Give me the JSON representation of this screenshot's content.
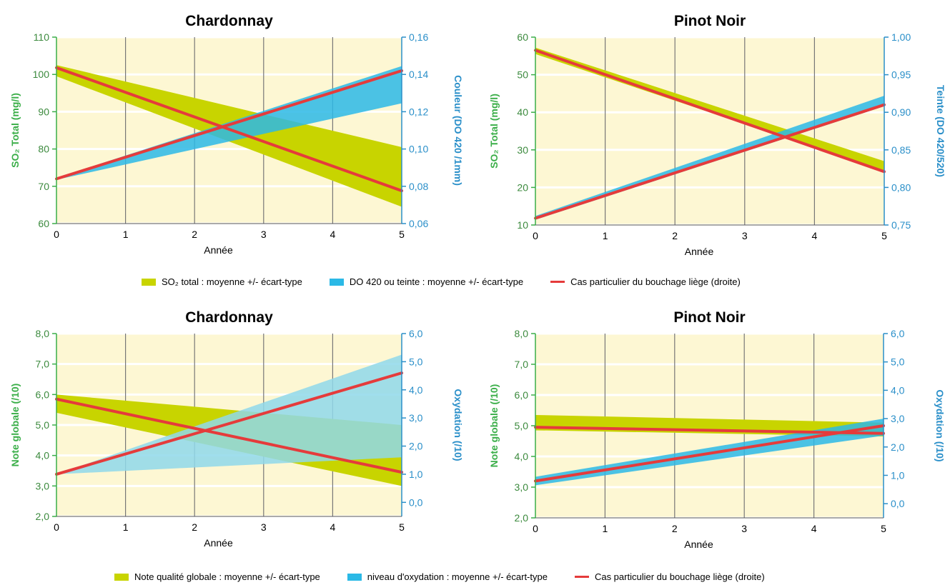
{
  "colors": {
    "plot_bg": "#fdf7d3",
    "grid_h": "#ffffff",
    "grid_v": "#777777",
    "so2_band": "#c8d400",
    "color_band": "#2bb9e6",
    "color_band_light": "#8fd8ea",
    "overlap": "#6dc07a",
    "red_line": "#e53b3b",
    "left_axis": "#3aae48",
    "right_axis": "#2a8fc9"
  },
  "legends": [
    {
      "items": [
        {
          "label": "SO₂ total : moyenne +/- écart-type",
          "color": "#c8d400",
          "kind": "band"
        },
        {
          "label": "DO 420 ou teinte : moyenne +/- écart-type",
          "color": "#2bb9e6",
          "kind": "band"
        },
        {
          "label": "Cas particulier du bouchage liège (droite)",
          "color": "#e53b3b",
          "kind": "line"
        }
      ]
    },
    {
      "items": [
        {
          "label": "Note qualité globale :  moyenne +/- écart-type",
          "color": "#c8d400",
          "kind": "band"
        },
        {
          "label": "niveau d'oxydation :  moyenne +/- écart-type",
          "color": "#2bb9e6",
          "kind": "band"
        },
        {
          "label": "Cas particulier du bouchage liège (droite)",
          "color": "#e53b3b",
          "kind": "line"
        }
      ]
    }
  ],
  "chart_data": [
    {
      "type": "area",
      "title": "Chardonnay",
      "xlabel": "Année",
      "x": [
        0,
        5
      ],
      "xticks": [
        "0",
        "1",
        "2",
        "3",
        "4",
        "5"
      ],
      "ylabel_left": "SO₂ Total (mg/l)",
      "ylabel_right": "Couleur (DO 420 /1mm)",
      "ylim_left": [
        60,
        110
      ],
      "yticks_left": [
        "60",
        "70",
        "80",
        "90",
        "100",
        "110"
      ],
      "ylim_right": [
        0.06,
        0.16
      ],
      "yticks_right": [
        "0,06",
        "0,08",
        "0,10",
        "0,12",
        "0,14",
        "0,16"
      ],
      "series": [
        {
          "name": "SO₂ total : moyenne +/- écart-type",
          "axis": "left",
          "kind": "band",
          "upper": [
            102.5,
            80.5
          ],
          "lower": [
            99.5,
            64.5
          ]
        },
        {
          "name": "DO 420 ou teinte : moyenne +/- écart-type",
          "axis": "right",
          "kind": "band",
          "upper": [
            0.0845,
            0.1445
          ],
          "lower": [
            0.0835,
            0.1245
          ]
        },
        {
          "name": "Cas particulier du bouchage liège (droite)",
          "axis": "left",
          "kind": "line",
          "values": [
            101.8,
            68.8
          ]
        },
        {
          "name": "Cas particulier du bouchage liège (droite)",
          "axis": "right",
          "kind": "line",
          "values": [
            0.084,
            0.142
          ]
        }
      ]
    },
    {
      "type": "area",
      "title": "Pinot Noir",
      "xlabel": "Année",
      "x": [
        0,
        5
      ],
      "xticks": [
        "0",
        "1",
        "2",
        "3",
        "4",
        "5"
      ],
      "ylabel_left": "SO₂ Total (mg/l)",
      "ylabel_right": "Teinte (DO 420/520)",
      "ylim_left": [
        10,
        60
      ],
      "yticks_left": [
        "10",
        "20",
        "30",
        "40",
        "50",
        "60"
      ],
      "ylim_right": [
        0.75,
        1.0
      ],
      "yticks_right": [
        "0,75",
        "0,80",
        "0,85",
        "0,90",
        "0,95",
        "1,00"
      ],
      "series": [
        {
          "name": "SO₂ total : moyenne +/- écart-type",
          "axis": "left",
          "kind": "band",
          "upper": [
            57.2,
            27.0
          ],
          "lower": [
            55.5,
            24.5
          ]
        },
        {
          "name": "DO 420 ou teinte : moyenne +/- écart-type",
          "axis": "right",
          "kind": "band",
          "upper": [
            0.762,
            0.922
          ],
          "lower": [
            0.757,
            0.908
          ]
        },
        {
          "name": "Cas particulier du bouchage liège (droite)",
          "axis": "left",
          "kind": "line",
          "values": [
            56.5,
            24.2
          ]
        },
        {
          "name": "Cas particulier du bouchage liège (droite)",
          "axis": "right",
          "kind": "line",
          "values": [
            0.759,
            0.91
          ]
        }
      ]
    },
    {
      "type": "area",
      "title": "Chardonnay",
      "xlabel": "Année",
      "x": [
        0,
        5
      ],
      "xticks": [
        "0",
        "1",
        "2",
        "3",
        "4",
        "5"
      ],
      "ylabel_left": "Note globale (/10)",
      "ylabel_right": "Oxydation (/10)",
      "ylim_left": [
        2.0,
        8.0
      ],
      "yticks_left": [
        "2,0",
        "3,0",
        "4,0",
        "5,0",
        "6,0",
        "7,0",
        "8,0"
      ],
      "ylim_right": [
        -0.5,
        6.0
      ],
      "yticks_right": [
        "0,0",
        "1,0",
        "2,0",
        "3,0",
        "4,0",
        "5,0",
        "6,0"
      ],
      "series": [
        {
          "name": "Note qualité globale :  moyenne +/- écart-type",
          "axis": "left",
          "kind": "band",
          "upper": [
            6.0,
            5.0
          ],
          "lower": [
            5.4,
            3.0
          ]
        },
        {
          "name": "niveau d'oxydation :  moyenne +/- écart-type",
          "axis": "right",
          "kind": "band",
          "upper": [
            1.0,
            5.25
          ],
          "lower": [
            1.0,
            1.6
          ]
        },
        {
          "name": "Cas particulier du bouchage liège (droite)",
          "axis": "left",
          "kind": "line",
          "values": [
            5.85,
            3.45
          ]
        },
        {
          "name": "Cas particulier du bouchage liège (droite)",
          "axis": "right",
          "kind": "line",
          "values": [
            1.0,
            4.6
          ]
        }
      ]
    },
    {
      "type": "area",
      "title": "Pinot Noir",
      "xlabel": "Année",
      "x": [
        0,
        5
      ],
      "xticks": [
        "0",
        "1",
        "2",
        "3",
        "4",
        "5"
      ],
      "ylabel_left": "Note globale (/10)",
      "ylabel_right": "Oxydation (/10)",
      "ylim_left": [
        2.0,
        8.0
      ],
      "yticks_left": [
        "2,0",
        "3,0",
        "4,0",
        "5,0",
        "6,0",
        "7,0",
        "8,0"
      ],
      "ylim_right": [
        -0.5,
        6.0
      ],
      "yticks_right": [
        "0,0",
        "1,0",
        "2,0",
        "3,0",
        "4,0",
        "5,0",
        "6,0"
      ],
      "series": [
        {
          "name": "Note qualité globale :  moyenne +/- écart-type",
          "axis": "left",
          "kind": "band",
          "upper": [
            5.35,
            5.1
          ],
          "lower": [
            4.85,
            4.65
          ]
        },
        {
          "name": "niveau d'oxydation :  moyenne +/- écart-type",
          "axis": "right",
          "kind": "band",
          "upper": [
            0.95,
            3.0
          ],
          "lower": [
            0.65,
            2.4
          ]
        },
        {
          "name": "Cas particulier du bouchage liège (droite)",
          "axis": "left",
          "kind": "line",
          "values": [
            4.95,
            4.75
          ]
        },
        {
          "name": "Cas particulier du bouchage liège (droite)",
          "axis": "right",
          "kind": "line",
          "values": [
            0.8,
            2.75
          ]
        }
      ]
    }
  ]
}
